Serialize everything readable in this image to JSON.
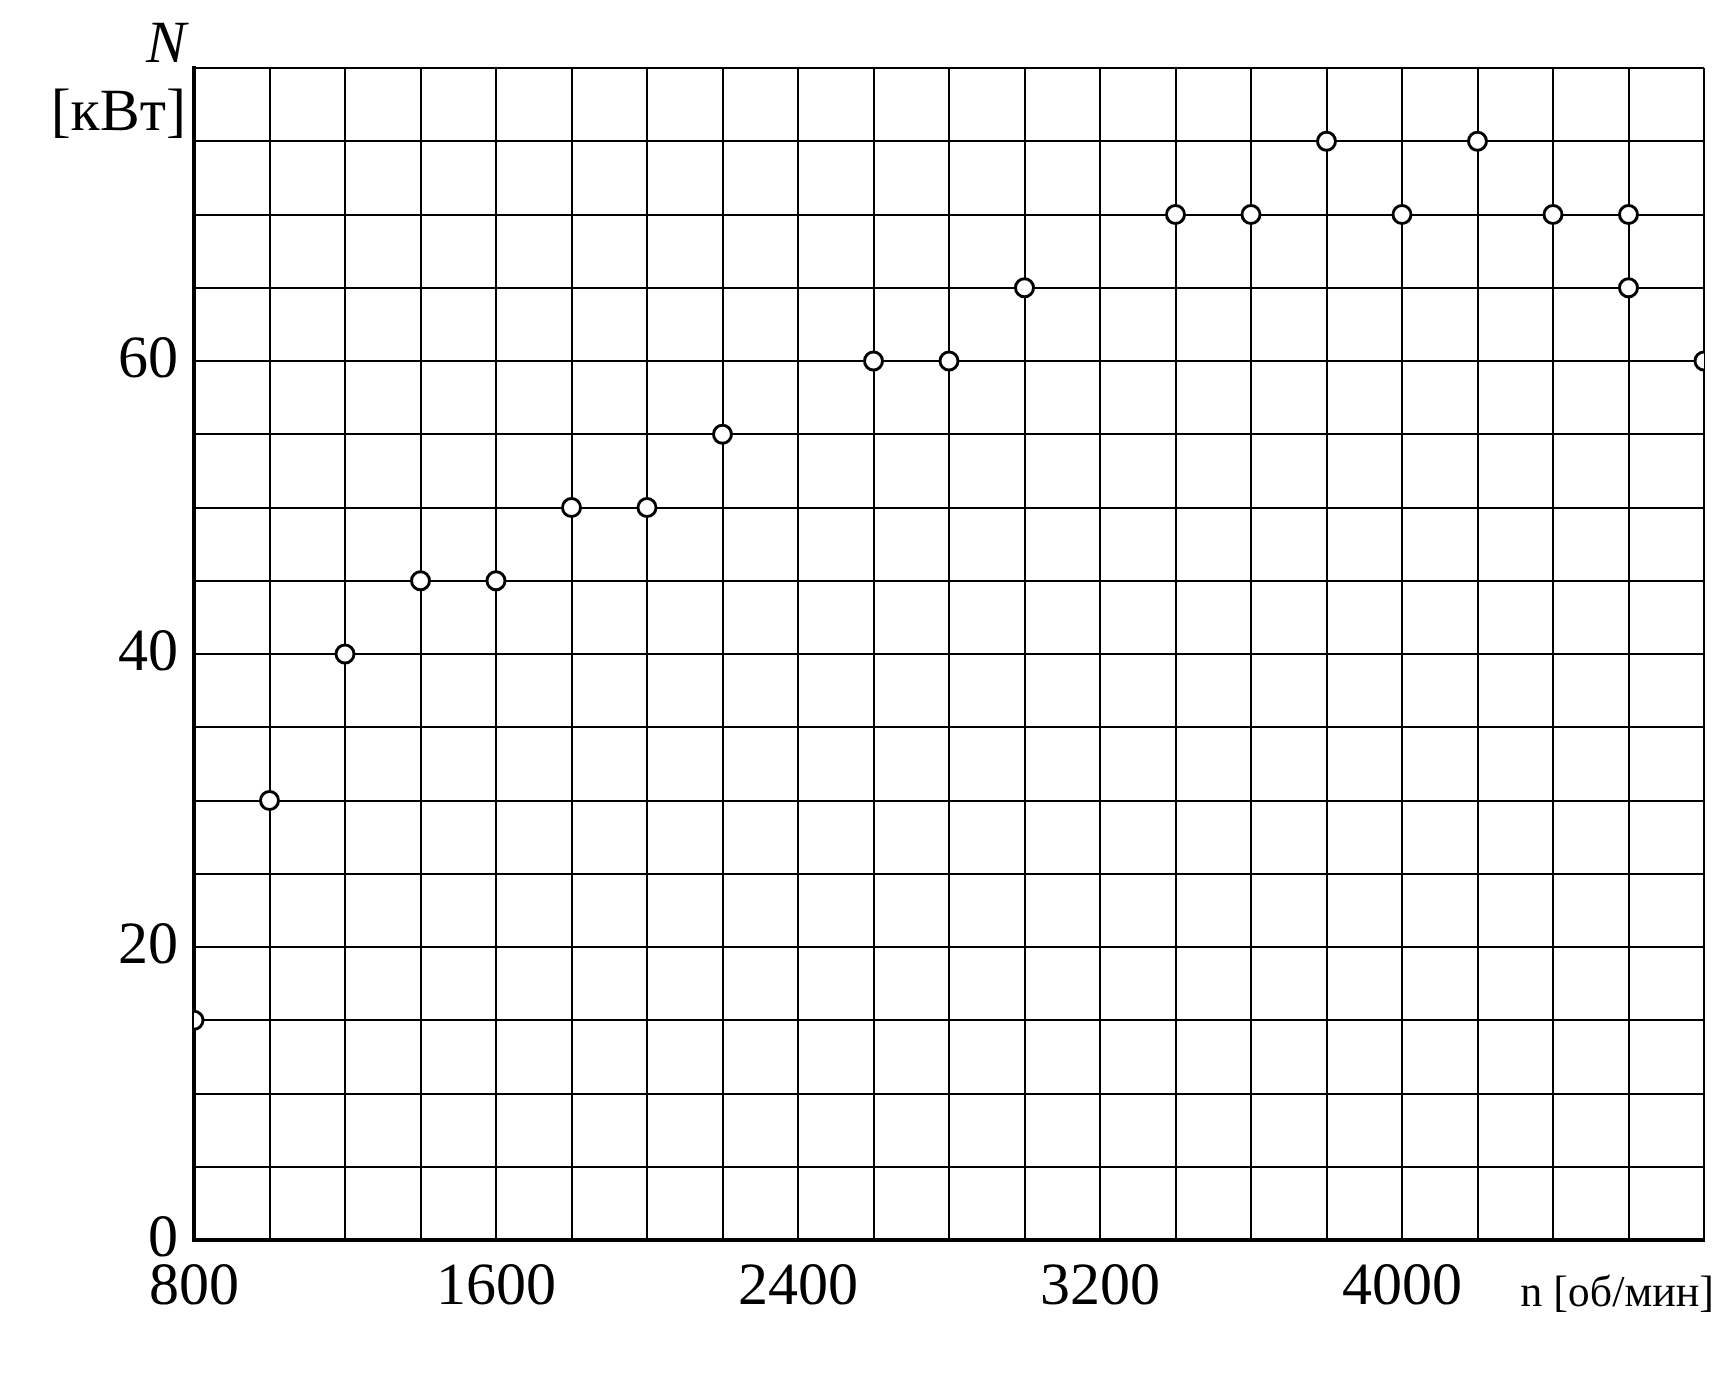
{
  "chart_data": {
    "type": "scatter",
    "xlabel": "n [об/мин]",
    "ylabel": "N [кВт]",
    "x": [
      800,
      1000,
      1200,
      1400,
      1600,
      1800,
      2000,
      2200,
      2600,
      2800,
      3000,
      3400,
      3600,
      3800,
      4000,
      4200,
      4400,
      4600,
      4600,
      4800
    ],
    "series": [
      {
        "color": "#000000",
        "values": [
          15,
          30,
          40,
          45,
          45,
          50,
          50,
          55,
          60,
          60,
          65,
          70,
          70,
          75,
          70,
          75,
          70,
          70,
          65,
          60
        ]
      }
    ],
    "marker": "circle",
    "grid": true,
    "xlim": [
      800,
      4800
    ],
    "xticks": [
      800,
      {
        "value": 1000,
        "label": null
      },
      {
        "value": 1200,
        "label": null
      },
      {
        "value": 1400,
        "label": null
      },
      1600,
      {
        "value": 1800,
        "label": null
      },
      {
        "value": 2000,
        "label": null
      },
      {
        "value": 2200,
        "label": null
      },
      2400,
      {
        "value": 2600,
        "label": null
      },
      {
        "value": 2800,
        "label": null
      },
      {
        "value": 3000,
        "label": null
      },
      3200,
      {
        "value": 3400,
        "label": null
      },
      {
        "value": 3600,
        "label": null
      },
      {
        "value": 3800,
        "label": null
      },
      4000,
      {
        "value": 4200,
        "label": null
      },
      {
        "value": 4400,
        "label": null
      },
      {
        "value": 4600,
        "label": null
      },
      {
        "value": 4800,
        "label": null
      }
    ],
    "ylim": [
      0,
      80
    ],
    "yticks": [
      0,
      {
        "value": 5,
        "label": null
      },
      {
        "value": 10,
        "label": null
      },
      {
        "value": 15,
        "label": null
      },
      20,
      {
        "value": 25,
        "label": null
      },
      {
        "value": 30,
        "label": null
      },
      {
        "value": 35,
        "label": null
      },
      40,
      {
        "value": 45,
        "label": null
      },
      {
        "value": 50,
        "label": null
      },
      {
        "value": 55,
        "label": null
      },
      60,
      {
        "value": 65,
        "label": null
      },
      {
        "value": 70,
        "label": null
      },
      {
        "value": 75,
        "label": null
      },
      {
        "value": 80,
        "label": null
      }
    ]
  }
}
